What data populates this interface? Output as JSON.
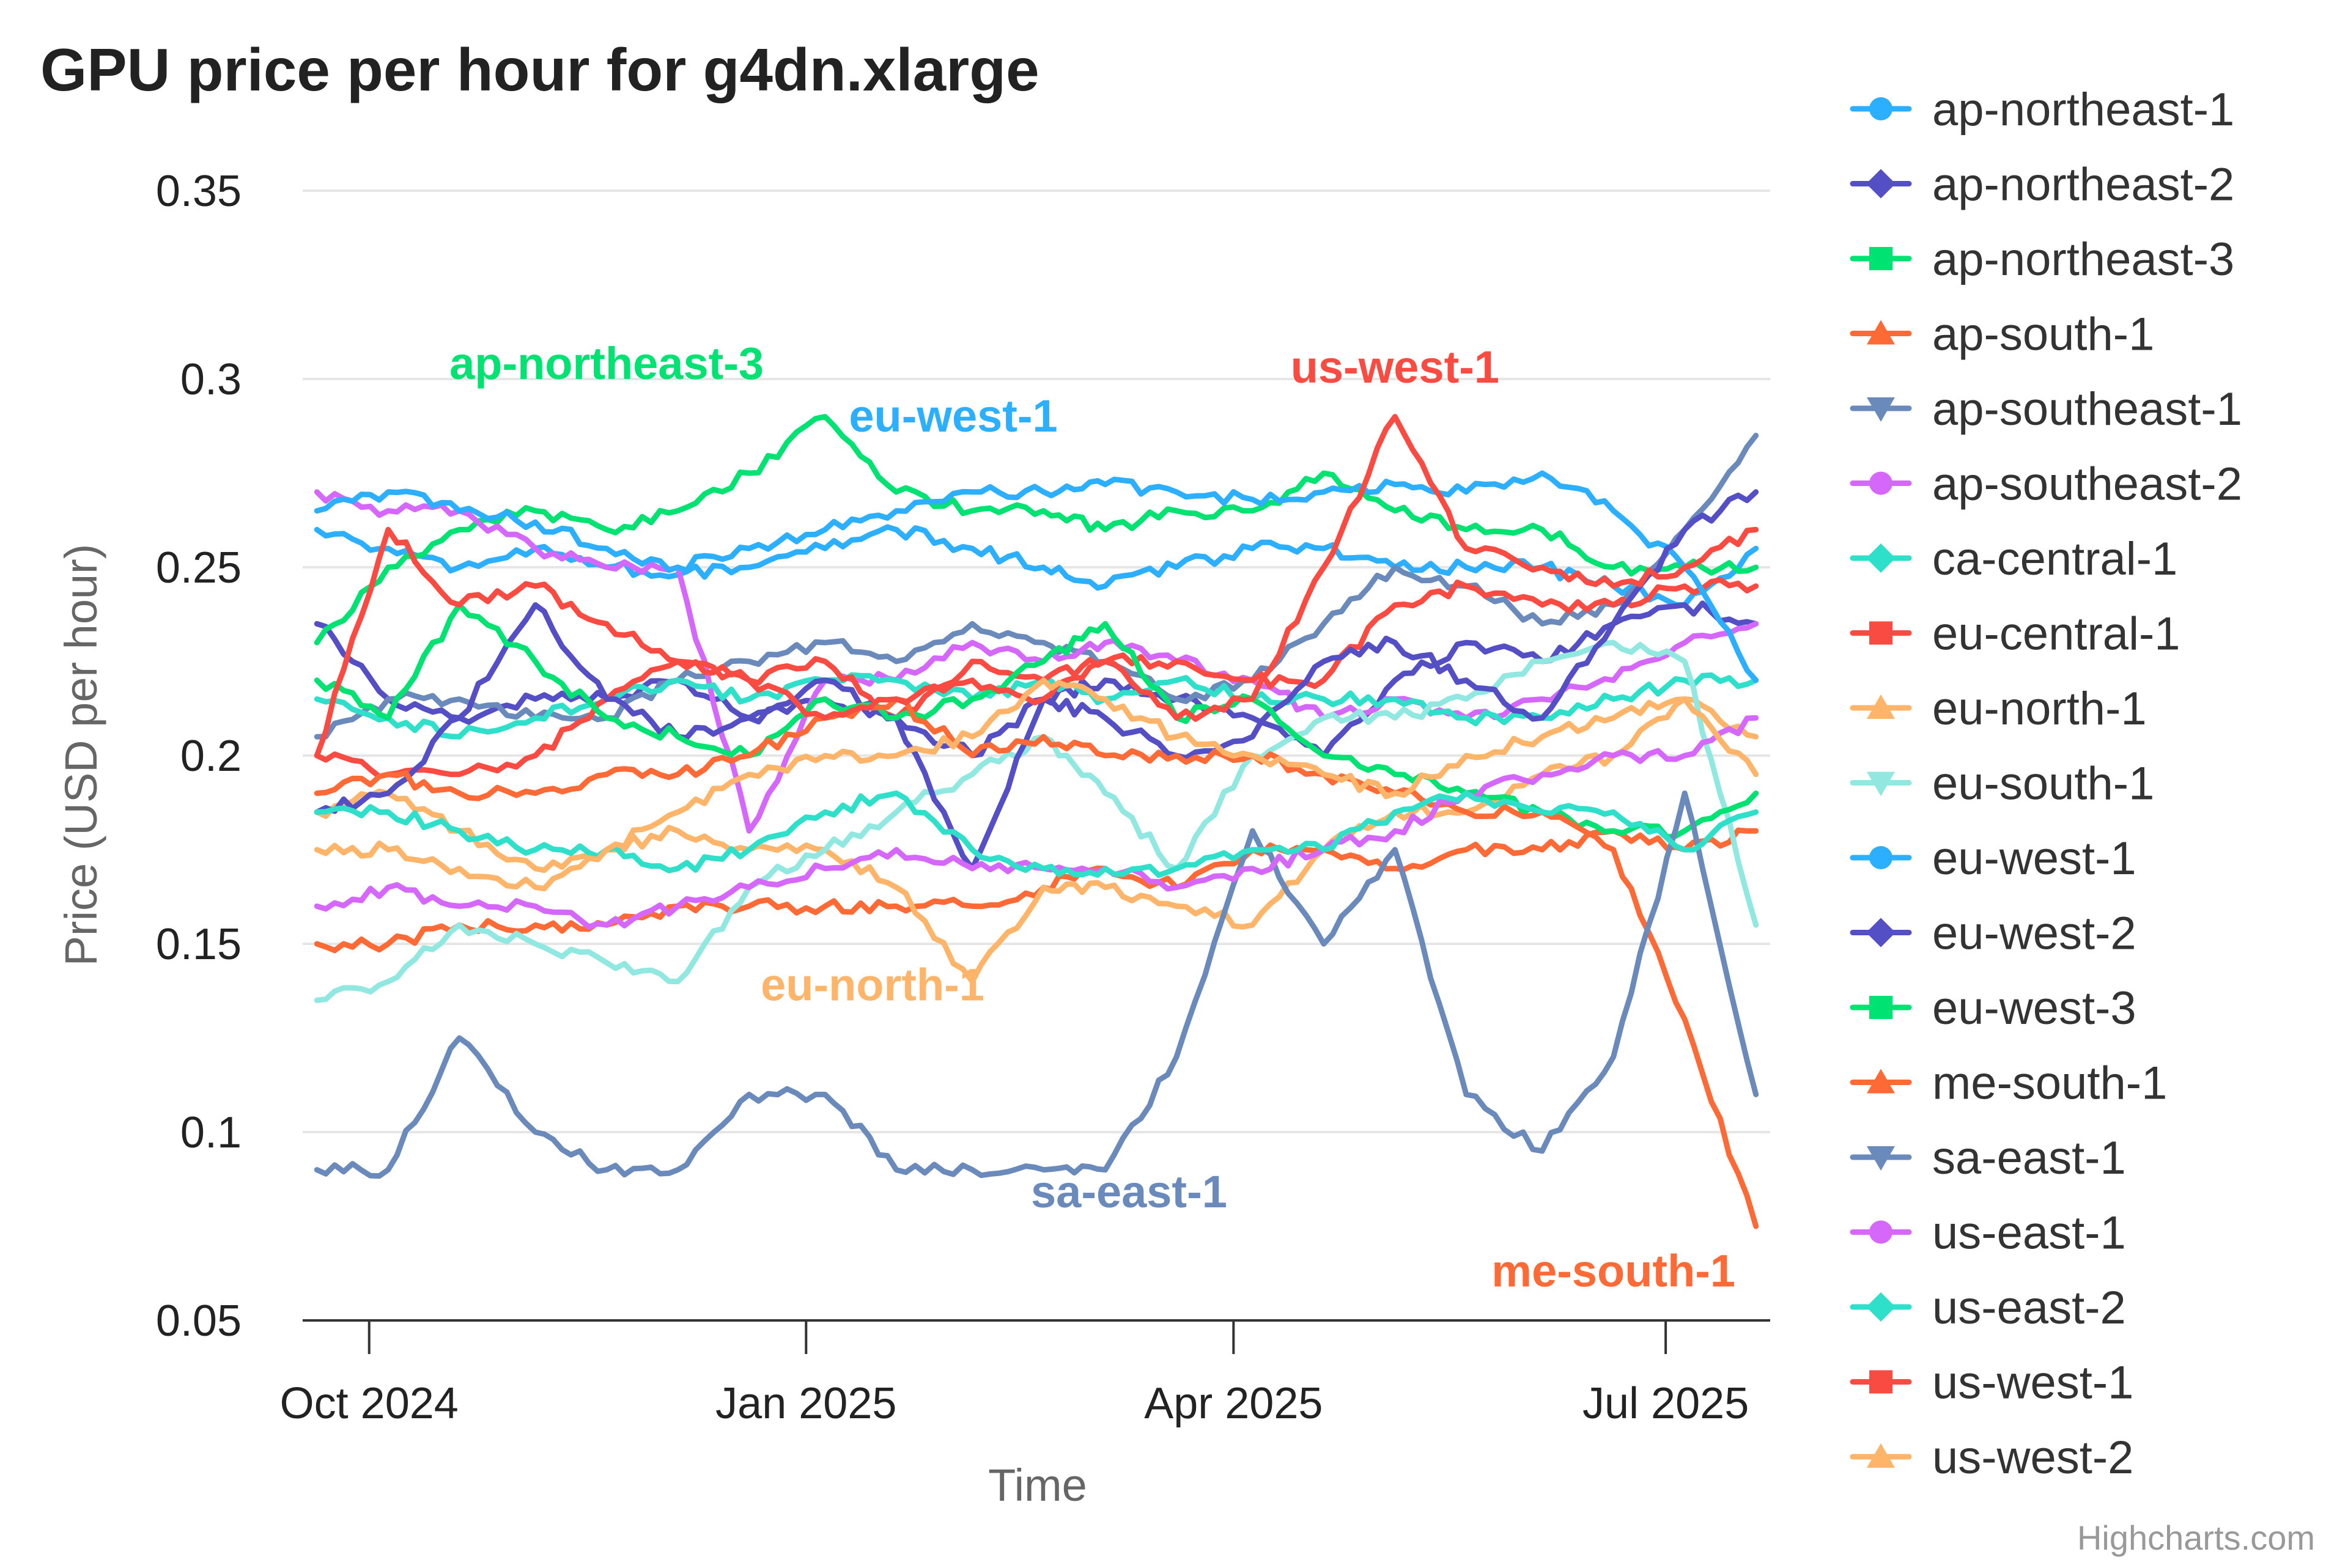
{
  "chart_data": {
    "type": "line",
    "title": "GPU price per hour for g4dn.xlarge",
    "xlabel": "Time",
    "ylabel": "Price (USD per hour)",
    "ylim": [
      0.05,
      0.35
    ],
    "yticks": [
      0.05,
      0.1,
      0.15,
      0.2,
      0.25,
      0.3,
      0.35
    ],
    "ytick_labels": [
      "0.05",
      "0.1",
      "0.15",
      "0.2",
      "0.25",
      "0.3",
      "0.35"
    ],
    "xlim": [
      "2024-09-17",
      "2025-07-23"
    ],
    "xticks": [
      "2024-10-01",
      "2025-01-01",
      "2025-04-01",
      "2025-07-01"
    ],
    "xtick_labels": [
      "Oct 2024",
      "Jan 2025",
      "Apr 2025",
      "Jul 2025"
    ],
    "grid": true,
    "legend_position": "right",
    "credits": "Highcharts.com",
    "x": [
      "2024-09-20",
      "2024-10-05",
      "2024-10-20",
      "2024-11-05",
      "2024-11-20",
      "2024-12-05",
      "2024-12-20",
      "2025-01-05",
      "2025-01-20",
      "2025-02-05",
      "2025-02-20",
      "2025-03-05",
      "2025-03-20",
      "2025-04-05",
      "2025-04-20",
      "2025-05-05",
      "2025-05-20",
      "2025-06-05",
      "2025-06-20",
      "2025-07-05",
      "2025-07-20"
    ],
    "series": [
      {
        "name": "ap-northeast-1",
        "color": "#2caffe",
        "marker": "circle",
        "values": [
          0.26,
          0.255,
          0.25,
          0.255,
          0.25,
          0.248,
          0.25,
          0.255,
          0.26,
          0.255,
          0.25,
          0.245,
          0.25,
          0.255,
          0.255,
          0.25,
          0.25,
          0.25,
          0.245,
          0.24,
          0.255
        ]
      },
      {
        "name": "ap-northeast-2",
        "color": "#544fc5",
        "marker": "diamond",
        "values": [
          0.235,
          0.215,
          0.21,
          0.215,
          0.215,
          0.22,
          0.21,
          0.215,
          0.21,
          0.2,
          0.215,
          0.22,
          0.215,
          0.21,
          0.2,
          0.22,
          0.23,
          0.225,
          0.235,
          0.24,
          0.235
        ]
      },
      {
        "name": "ap-northeast-3",
        "color": "#00e272",
        "marker": "square",
        "values": [
          0.23,
          0.25,
          0.26,
          0.265,
          0.26,
          0.265,
          0.275,
          0.29,
          0.27,
          0.265,
          0.265,
          0.26,
          0.265,
          0.265,
          0.275,
          0.265,
          0.26,
          0.26,
          0.25,
          0.25,
          0.25
        ]
      },
      {
        "name": "ap-south-1",
        "color": "#fe6a35",
        "marker": "triangle",
        "values": [
          0.15,
          0.15,
          0.155,
          0.155,
          0.155,
          0.16,
          0.16,
          0.16,
          0.16,
          0.16,
          0.165,
          0.17,
          0.165,
          0.175,
          0.175,
          0.17,
          0.175,
          0.175,
          0.18,
          0.175,
          0.18
        ]
      },
      {
        "name": "ap-southeast-1",
        "color": "#6b8abc",
        "marker": "triangle-down",
        "values": [
          0.205,
          0.215,
          0.215,
          0.21,
          0.21,
          0.22,
          0.225,
          0.23,
          0.225,
          0.235,
          0.23,
          0.225,
          0.215,
          0.22,
          0.235,
          0.25,
          0.245,
          0.235,
          0.24,
          0.26,
          0.285
        ]
      },
      {
        "name": "ap-southeast-2",
        "color": "#d568fb",
        "marker": "circle",
        "values": [
          0.27,
          0.265,
          0.265,
          0.255,
          0.25,
          0.25,
          0.18,
          0.22,
          0.22,
          0.23,
          0.225,
          0.23,
          0.225,
          0.22,
          0.21,
          0.215,
          0.21,
          0.215,
          0.22,
          0.23,
          0.235
        ]
      },
      {
        "name": "ca-central-1",
        "color": "#2ee0ca",
        "marker": "diamond",
        "values": [
          0.215,
          0.21,
          0.205,
          0.21,
          0.215,
          0.22,
          0.215,
          0.22,
          0.22,
          0.215,
          0.22,
          0.215,
          0.22,
          0.215,
          0.215,
          0.215,
          0.21,
          0.21,
          0.215,
          0.22,
          0.22
        ]
      },
      {
        "name": "eu-central-1",
        "color": "#fa4b42",
        "marker": "square",
        "values": [
          0.2,
          0.195,
          0.195,
          0.2,
          0.215,
          0.225,
          0.22,
          0.225,
          0.21,
          0.225,
          0.22,
          0.225,
          0.225,
          0.22,
          0.22,
          0.24,
          0.245,
          0.24,
          0.24,
          0.245,
          0.245
        ]
      },
      {
        "name": "eu-north-1",
        "color": "#feb56a",
        "marker": "triangle",
        "values": [
          0.185,
          0.19,
          0.18,
          0.17,
          0.175,
          0.18,
          0.175,
          0.175,
          0.165,
          0.14,
          0.165,
          0.165,
          0.16,
          0.155,
          0.175,
          0.185,
          0.185,
          0.195,
          0.2,
          0.215,
          0.205
        ]
      },
      {
        "name": "eu-south-1",
        "color": "#91e8e1",
        "marker": "triangle-down",
        "values": [
          0.135,
          0.14,
          0.155,
          0.15,
          0.145,
          0.14,
          0.165,
          0.175,
          0.185,
          0.195,
          0.205,
          0.19,
          0.17,
          0.2,
          0.21,
          0.21,
          0.215,
          0.225,
          0.23,
          0.225,
          0.155
        ]
      },
      {
        "name": "eu-west-1",
        "color": "#2caffe",
        "marker": "circle",
        "values": [
          0.265,
          0.27,
          0.265,
          0.262,
          0.255,
          0.25,
          0.255,
          0.26,
          0.265,
          0.27,
          0.27,
          0.272,
          0.27,
          0.268,
          0.27,
          0.272,
          0.27,
          0.275,
          0.265,
          0.25,
          0.22
        ]
      },
      {
        "name": "eu-west-2",
        "color": "#544fc5",
        "marker": "diamond",
        "values": [
          0.185,
          0.19,
          0.21,
          0.24,
          0.215,
          0.205,
          0.21,
          0.22,
          0.21,
          0.17,
          0.215,
          0.21,
          0.2,
          0.205,
          0.225,
          0.23,
          0.22,
          0.21,
          0.235,
          0.26,
          0.27
        ]
      },
      {
        "name": "eu-west-3",
        "color": "#00e272",
        "marker": "square",
        "values": [
          0.22,
          0.21,
          0.24,
          0.225,
          0.21,
          0.205,
          0.2,
          0.215,
          0.21,
          0.215,
          0.225,
          0.235,
          0.21,
          0.215,
          0.2,
          0.195,
          0.19,
          0.185,
          0.18,
          0.18,
          0.19
        ]
      },
      {
        "name": "me-south-1",
        "color": "#fe6a35",
        "marker": "triangle",
        "values": [
          0.19,
          0.195,
          0.19,
          0.19,
          0.195,
          0.195,
          0.2,
          0.21,
          0.215,
          0.2,
          0.205,
          0.2,
          0.2,
          0.2,
          0.195,
          0.19,
          0.185,
          0.185,
          0.175,
          0.13,
          0.075
        ]
      },
      {
        "name": "sa-east-1",
        "color": "#6b8abc",
        "marker": "triangle-down",
        "values": [
          0.09,
          0.09,
          0.125,
          0.1,
          0.09,
          0.09,
          0.11,
          0.11,
          0.09,
          0.09,
          0.09,
          0.09,
          0.12,
          0.18,
          0.15,
          0.175,
          0.11,
          0.095,
          0.12,
          0.19,
          0.11
        ]
      },
      {
        "name": "us-east-1",
        "color": "#d568fb",
        "marker": "circle",
        "values": [
          0.16,
          0.165,
          0.16,
          0.16,
          0.155,
          0.16,
          0.165,
          0.17,
          0.175,
          0.17,
          0.17,
          0.17,
          0.165,
          0.17,
          0.175,
          0.18,
          0.19,
          0.195,
          0.2,
          0.2,
          0.21
        ]
      },
      {
        "name": "us-east-2",
        "color": "#2ee0ca",
        "marker": "diamond",
        "values": [
          0.185,
          0.185,
          0.18,
          0.175,
          0.175,
          0.17,
          0.175,
          0.185,
          0.19,
          0.175,
          0.17,
          0.17,
          0.17,
          0.175,
          0.175,
          0.185,
          0.19,
          0.185,
          0.185,
          0.175,
          0.185
        ]
      },
      {
        "name": "us-west-1",
        "color": "#fa4b42",
        "marker": "square",
        "values": [
          0.2,
          0.26,
          0.24,
          0.245,
          0.235,
          0.225,
          0.22,
          0.21,
          0.215,
          0.22,
          0.215,
          0.225,
          0.21,
          0.215,
          0.25,
          0.29,
          0.255,
          0.25,
          0.245,
          0.25,
          0.26
        ]
      },
      {
        "name": "us-west-2",
        "color": "#feb56a",
        "marker": "triangle",
        "values": [
          0.175,
          0.175,
          0.17,
          0.165,
          0.175,
          0.185,
          0.195,
          0.2,
          0.2,
          0.205,
          0.22,
          0.215,
          0.205,
          0.2,
          0.195,
          0.19,
          0.2,
          0.205,
          0.21,
          0.215,
          0.195
        ]
      }
    ],
    "annotations": [
      {
        "text": "ap-northeast-3",
        "color": "#00e272",
        "x": "2024-11-20",
        "y": 0.3
      },
      {
        "text": "eu-west-1",
        "color": "#2caffe",
        "x": "2025-02-01",
        "y": 0.286
      },
      {
        "text": "us-west-1",
        "color": "#fa4b42",
        "x": "2025-05-05",
        "y": 0.299
      },
      {
        "text": "eu-north-1",
        "color": "#feb56a",
        "x": "2025-01-15",
        "y": 0.135
      },
      {
        "text": "sa-east-1",
        "color": "#6b8abc",
        "x": "2025-03-10",
        "y": 0.08
      },
      {
        "text": "me-south-1",
        "color": "#fe6a35",
        "x": "2025-06-20",
        "y": 0.059
      }
    ]
  }
}
